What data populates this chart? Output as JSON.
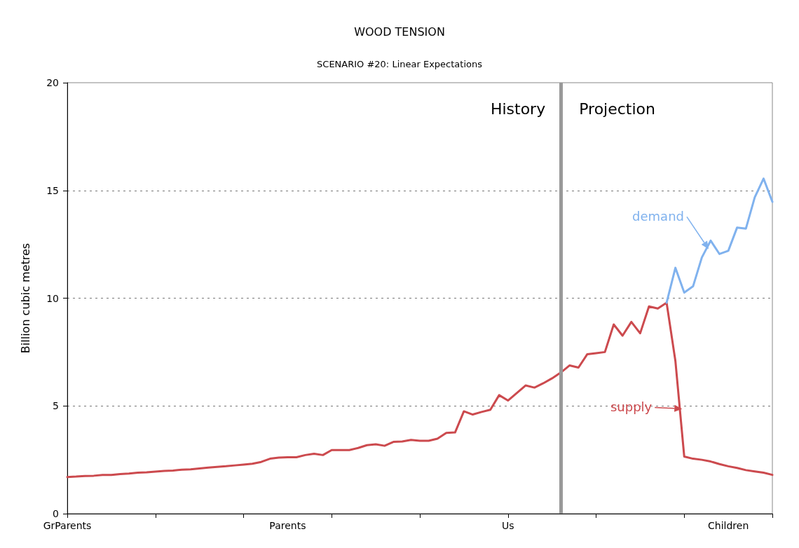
{
  "chart_data": {
    "type": "line",
    "title": "WOOD TENSION",
    "subtitle": "SCENARIO #20: Linear Expectations",
    "ylabel": "Billion cubic metres",
    "categories": [
      "GrParents",
      null,
      null,
      null,
      null,
      null,
      null,
      null,
      null,
      null,
      null,
      null,
      null,
      null,
      null,
      null,
      null,
      null,
      null,
      null,
      null,
      null,
      null,
      null,
      null,
      "Parents",
      null,
      null,
      null,
      null,
      null,
      null,
      null,
      null,
      null,
      null,
      null,
      null,
      null,
      null,
      null,
      null,
      null,
      null,
      null,
      null,
      null,
      null,
      null,
      null,
      "Us",
      null,
      null,
      null,
      null,
      null,
      null,
      null,
      null,
      null,
      null,
      null,
      null,
      null,
      null,
      null,
      null,
      null,
      null,
      null,
      null,
      null,
      null,
      null,
      null,
      "Children",
      null,
      null,
      null,
      null,
      null
    ],
    "series": [
      {
        "name": "supply",
        "color": "#cc4a4e",
        "values": [
          1.7,
          1.72,
          1.75,
          1.76,
          1.8,
          1.8,
          1.84,
          1.86,
          1.9,
          1.92,
          1.95,
          1.98,
          2.0,
          2.04,
          2.06,
          2.1,
          2.14,
          2.17,
          2.2,
          2.24,
          2.28,
          2.32,
          2.4,
          2.55,
          2.6,
          2.62,
          2.62,
          2.72,
          2.78,
          2.72,
          2.95,
          2.95,
          2.95,
          3.05,
          3.18,
          3.22,
          3.15,
          3.33,
          3.35,
          3.42,
          3.38,
          3.38,
          3.48,
          3.75,
          3.77,
          4.75,
          4.6,
          4.72,
          4.82,
          5.5,
          5.25,
          5.6,
          5.95,
          5.85,
          6.05,
          6.28,
          6.55,
          6.88,
          6.78,
          7.4,
          7.45,
          7.5,
          8.78,
          8.26,
          8.9,
          8.37,
          9.62,
          9.52,
          9.79,
          7.08,
          2.65,
          2.55,
          2.5,
          2.42,
          2.3,
          2.2,
          2.12,
          2.02,
          1.96,
          1.9,
          1.8
        ]
      },
      {
        "name": "demand",
        "color": "#80b2ee",
        "values": [
          null,
          null,
          null,
          null,
          null,
          null,
          null,
          null,
          null,
          null,
          null,
          null,
          null,
          null,
          null,
          null,
          null,
          null,
          null,
          null,
          null,
          null,
          null,
          null,
          null,
          null,
          null,
          null,
          null,
          null,
          null,
          null,
          null,
          null,
          null,
          null,
          null,
          null,
          null,
          null,
          null,
          null,
          null,
          null,
          null,
          null,
          null,
          null,
          null,
          null,
          null,
          null,
          null,
          null,
          null,
          null,
          null,
          null,
          null,
          null,
          null,
          null,
          null,
          null,
          null,
          null,
          null,
          null,
          9.79,
          11.41,
          10.26,
          10.55,
          11.89,
          12.67,
          12.05,
          12.2,
          13.28,
          13.23,
          14.68,
          15.55,
          14.47
        ]
      }
    ],
    "ylim": [
      0,
      20
    ],
    "yticks": [
      0,
      5,
      10,
      15,
      20
    ],
    "annotations": [
      "History",
      "Projection"
    ],
    "grid": "y",
    "marker": "none",
    "line_style": "solid"
  }
}
